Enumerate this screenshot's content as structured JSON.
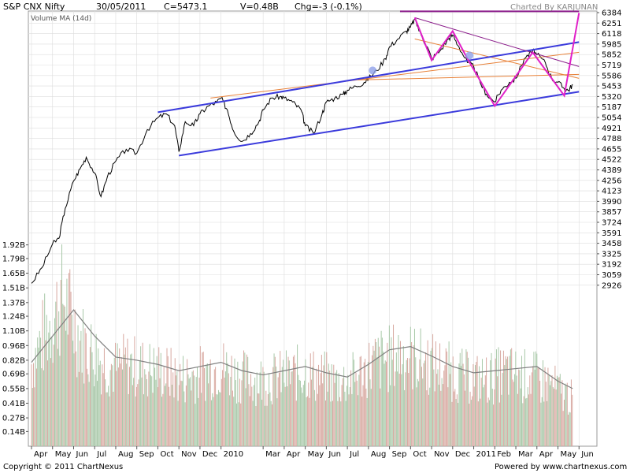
{
  "header": {
    "symbol": "S&P CNX Nifty",
    "date": "30/05/2011",
    "close": "C=5473.1",
    "volume": "V=0.48B",
    "change": "Chg=-3 (-0.1%)",
    "charted_by": "Charted By KARJUNAN"
  },
  "volume_label": "Volume MA (14d)",
  "footer": {
    "copyright": "Copyright © 2011 ChartNexus",
    "powered_by": "Powered by www.chartnexus.com"
  },
  "colors": {
    "price_line": "#000000",
    "channel": "#3b3bdc",
    "zigzag": "#e020c8",
    "fan_line": "#e8823a",
    "downtrend": "#8a1c8a",
    "top_line": "#8a1c8a",
    "volume_up": "#d8a8a0",
    "volume_down": "#a8c8a8",
    "volume_ma": "#808080",
    "grid": "#dddddd"
  },
  "chart_data": {
    "type": "line",
    "price_axis": {
      "ylim": [
        2860,
        6420
      ],
      "ticks": [
        2926,
        3059,
        3192,
        3325,
        3458,
        3591,
        3724,
        3857,
        3990,
        4123,
        4256,
        4389,
        4522,
        4655,
        4788,
        4921,
        5054,
        5187,
        5320,
        5453,
        5586,
        5719,
        5852,
        5985,
        6118,
        6251,
        6384
      ]
    },
    "volume_axis": {
      "ylim": [
        0,
        2.0
      ],
      "ticks": [
        "0.14B",
        "0.27B",
        "0.41B",
        "0.55B",
        "0.69B",
        "0.82B",
        "0.96B",
        "1.10B",
        "1.24B",
        "1.37B",
        "1.51B",
        "1.65B",
        "1.79B",
        "1.92B"
      ]
    },
    "x_axis": {
      "labels": [
        "Apr",
        "May",
        "Jun",
        "Jul",
        "Aug",
        "Sep",
        "Oct",
        "Nov",
        "Dec",
        "2010",
        "Mar",
        "Apr",
        "May",
        "Jun",
        "Jul",
        "Aug",
        "Sep",
        "Oct",
        "Nov",
        "Dec",
        "2011",
        "Feb",
        "Mar",
        "Apr",
        "May",
        "Jun"
      ],
      "month_index": [
        0,
        1,
        2,
        3,
        4,
        5,
        6,
        7,
        8,
        9,
        11,
        12,
        13,
        14,
        15,
        16,
        17,
        18,
        19,
        20,
        21,
        22,
        23,
        24,
        25,
        26
      ]
    },
    "series": [
      {
        "values_month_close": [
          [
            0,
            2950
          ],
          [
            0.5,
            3150
          ],
          [
            1,
            3450
          ],
          [
            1.3,
            3520
          ],
          [
            1.6,
            3900
          ],
          [
            2,
            4250
          ],
          [
            2.3,
            4400
          ],
          [
            2.6,
            4550
          ],
          [
            3,
            4350
          ],
          [
            3.3,
            4050
          ],
          [
            3.6,
            4300
          ],
          [
            4,
            4500
          ],
          [
            4.5,
            4650
          ],
          [
            5,
            4600
          ],
          [
            5.5,
            4900
          ],
          [
            6,
            5050
          ],
          [
            6.4,
            5100
          ],
          [
            6.8,
            4950
          ],
          [
            7,
            4620
          ],
          [
            7.3,
            5000
          ],
          [
            7.7,
            4950
          ],
          [
            8,
            5100
          ],
          [
            8.4,
            5200
          ],
          [
            8.8,
            5250
          ],
          [
            9,
            5300
          ],
          [
            9.3,
            5150
          ],
          [
            9.6,
            4880
          ],
          [
            10,
            4750
          ],
          [
            10.4,
            4850
          ],
          [
            10.8,
            5000
          ],
          [
            11,
            5150
          ],
          [
            11.4,
            5300
          ],
          [
            11.8,
            5320
          ],
          [
            12,
            5300
          ],
          [
            12.4,
            5250
          ],
          [
            12.8,
            5150
          ],
          [
            13,
            4950
          ],
          [
            13.4,
            4850
          ],
          [
            13.8,
            5100
          ],
          [
            14,
            5250
          ],
          [
            14.4,
            5300
          ],
          [
            14.8,
            5350
          ],
          [
            15,
            5400
          ],
          [
            15.4,
            5450
          ],
          [
            15.8,
            5500
          ],
          [
            16,
            5550
          ],
          [
            16.4,
            5650
          ],
          [
            16.8,
            5800
          ],
          [
            17,
            5950
          ],
          [
            17.4,
            6050
          ],
          [
            17.8,
            6150
          ],
          [
            18,
            6200
          ],
          [
            18.2,
            6300
          ],
          [
            18.5,
            6100
          ],
          [
            18.8,
            5950
          ],
          [
            19,
            5800
          ],
          [
            19.4,
            5900
          ],
          [
            19.8,
            6050
          ],
          [
            20,
            6100
          ],
          [
            20.3,
            5950
          ],
          [
            20.7,
            5750
          ],
          [
            21,
            5700
          ],
          [
            21.3,
            5500
          ],
          [
            21.6,
            5350
          ],
          [
            22,
            5250
          ],
          [
            22.3,
            5400
          ],
          [
            22.7,
            5500
          ],
          [
            23,
            5550
          ],
          [
            23.4,
            5800
          ],
          [
            23.8,
            5900
          ],
          [
            24,
            5850
          ],
          [
            24.4,
            5750
          ],
          [
            24.7,
            5550
          ],
          [
            25,
            5500
          ],
          [
            25.3,
            5420
          ],
          [
            25.5,
            5400
          ],
          [
            25.7,
            5473
          ]
        ]
      }
    ],
    "volume_bars_B": [
      [
        0,
        0.85
      ],
      [
        0.5,
        1.1
      ],
      [
        1,
        1.3
      ],
      [
        1.5,
        1.55
      ],
      [
        2,
        1.25
      ],
      [
        2.5,
        1.05
      ],
      [
        3,
        0.95
      ],
      [
        3.5,
        0.85
      ],
      [
        4,
        0.8
      ],
      [
        4.5,
        0.85
      ],
      [
        5,
        0.82
      ],
      [
        5.5,
        0.8
      ],
      [
        6,
        0.78
      ],
      [
        6.5,
        0.75
      ],
      [
        7,
        0.7
      ],
      [
        7.5,
        0.72
      ],
      [
        8,
        0.75
      ],
      [
        8.5,
        0.78
      ],
      [
        9,
        0.82
      ],
      [
        9.5,
        0.76
      ],
      [
        10,
        0.72
      ],
      [
        10.5,
        0.7
      ],
      [
        11,
        0.68
      ],
      [
        11.5,
        0.7
      ],
      [
        12,
        0.72
      ],
      [
        12.5,
        0.74
      ],
      [
        13,
        0.78
      ],
      [
        13.5,
        0.72
      ],
      [
        14,
        0.7
      ],
      [
        14.5,
        0.66
      ],
      [
        15,
        0.68
      ],
      [
        15.5,
        0.72
      ],
      [
        16,
        0.82
      ],
      [
        16.5,
        0.88
      ],
      [
        17,
        0.9
      ],
      [
        17.5,
        0.95
      ],
      [
        18,
        0.92
      ],
      [
        18.5,
        0.88
      ],
      [
        19,
        0.85
      ],
      [
        19.5,
        0.8
      ],
      [
        20,
        0.76
      ],
      [
        20.5,
        0.72
      ],
      [
        21,
        0.7
      ],
      [
        21.5,
        0.68
      ],
      [
        22,
        0.72
      ],
      [
        22.5,
        0.76
      ],
      [
        23,
        0.74
      ],
      [
        23.5,
        0.72
      ],
      [
        24,
        0.7
      ],
      [
        24.5,
        0.66
      ],
      [
        25,
        0.58
      ],
      [
        25.5,
        0.52
      ],
      [
        25.7,
        0.48
      ]
    ],
    "volume_ma_B": [
      [
        0,
        0.8
      ],
      [
        1,
        1.05
      ],
      [
        2,
        1.3
      ],
      [
        3,
        1.05
      ],
      [
        4,
        0.85
      ],
      [
        5,
        0.82
      ],
      [
        6,
        0.78
      ],
      [
        7,
        0.72
      ],
      [
        8,
        0.76
      ],
      [
        9,
        0.8
      ],
      [
        10,
        0.72
      ],
      [
        11,
        0.68
      ],
      [
        12,
        0.72
      ],
      [
        13,
        0.76
      ],
      [
        14,
        0.7
      ],
      [
        15,
        0.66
      ],
      [
        16,
        0.78
      ],
      [
        17,
        0.92
      ],
      [
        18,
        0.95
      ],
      [
        19,
        0.86
      ],
      [
        20,
        0.76
      ],
      [
        21,
        0.7
      ],
      [
        22,
        0.72
      ],
      [
        23,
        0.74
      ],
      [
        24,
        0.76
      ],
      [
        25,
        0.62
      ],
      [
        25.7,
        0.55
      ]
    ],
    "annotations": {
      "channel_upper": [
        [
          6,
          5120
        ],
        [
          26,
          6010
        ]
      ],
      "channel_lower": [
        [
          7,
          4570
        ],
        [
          26,
          5380
        ]
      ],
      "downtrend": [
        [
          18.2,
          6320
        ],
        [
          26,
          5700
        ]
      ],
      "top_line": [
        [
          17.5,
          6400
        ],
        [
          26,
          6400
        ]
      ],
      "fan_1": [
        [
          8.5,
          5300
        ],
        [
          26,
          5880
        ]
      ],
      "fan_2": [
        [
          15.5,
          5530
        ],
        [
          26,
          5600
        ]
      ],
      "fan_3": [
        [
          18.2,
          6050
        ],
        [
          26,
          5550
        ]
      ],
      "zigzag": [
        [
          18.2,
          6320
        ],
        [
          19,
          5780
        ],
        [
          20,
          6150
        ],
        [
          20.7,
          5800
        ],
        [
          22,
          5200
        ],
        [
          23.8,
          5880
        ],
        [
          25.3,
          5330
        ],
        [
          26,
          6380
        ]
      ]
    }
  }
}
